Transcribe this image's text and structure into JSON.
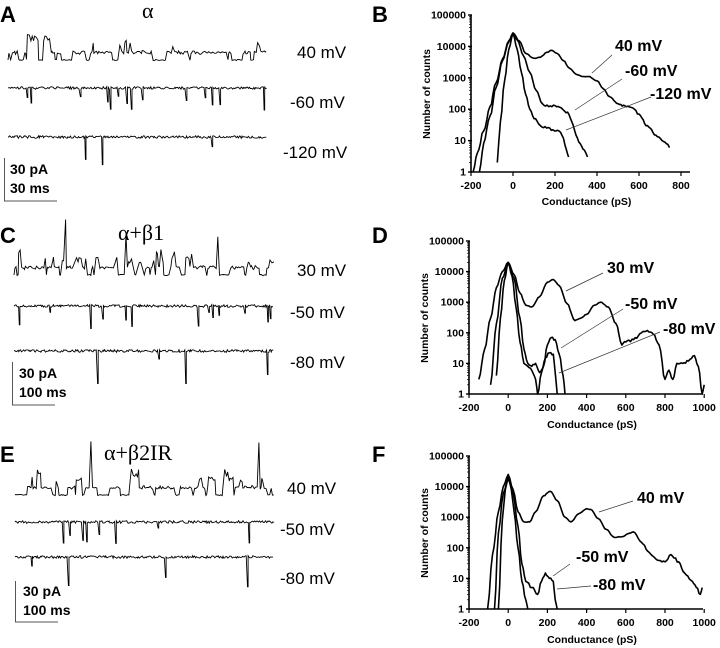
{
  "figure": {
    "panels": [
      {
        "id": "A",
        "letter": "A",
        "condition": "α",
        "traces": [
          {
            "voltage": "40 mV",
            "polarity": "up",
            "openings": "frequent"
          },
          {
            "voltage": "-60 mV",
            "polarity": "down",
            "openings": "sparse"
          },
          {
            "voltage": "-120 mV",
            "polarity": "down",
            "openings": "rare"
          }
        ],
        "scale_bar": {
          "current": "30 pA",
          "time": "30 ms"
        }
      },
      {
        "id": "C",
        "letter": "C",
        "condition": "α+β1",
        "traces": [
          {
            "voltage": "30 mV",
            "polarity": "up",
            "openings": "frequent"
          },
          {
            "voltage": "-50 mV",
            "polarity": "down",
            "openings": "sparse"
          },
          {
            "voltage": "-80 mV",
            "polarity": "down",
            "openings": "rare"
          }
        ],
        "scale_bar": {
          "current": "30 pA",
          "time": "100 ms"
        }
      },
      {
        "id": "E",
        "letter": "E",
        "condition": "α+β2IR",
        "traces": [
          {
            "voltage": "40 mV",
            "polarity": "up",
            "openings": "frequent"
          },
          {
            "voltage": "-50 mV",
            "polarity": "down",
            "openings": "sparse"
          },
          {
            "voltage": "-80 mV",
            "polarity": "down",
            "openings": "rare"
          }
        ],
        "scale_bar": {
          "current": "30 pA",
          "time": "100 ms"
        }
      }
    ]
  },
  "chart_data": [
    {
      "panel": "B",
      "type": "line",
      "xlabel": "Conductance (pS)",
      "ylabel": "Number of counts",
      "yscale": "log",
      "xlim": [
        -200,
        880
      ],
      "ylim": [
        1,
        100000
      ],
      "xticks": [
        "-200",
        "0",
        "200",
        "400",
        "600",
        "800"
      ],
      "xtick_values": [
        -200,
        0,
        200,
        400,
        600,
        800
      ],
      "yticks": [
        "1",
        "10",
        "100",
        "1000",
        "10000",
        "100000"
      ],
      "ytick_values": [
        1,
        10,
        100,
        1000,
        10000,
        100000
      ],
      "series": [
        {
          "name": "40 mV",
          "label": "40 mV",
          "x": [
            -190,
            -170,
            -140,
            -110,
            -80,
            -50,
            -20,
            0,
            30,
            60,
            100,
            130,
            160,
            185,
            210,
            240,
            270,
            300,
            330,
            360,
            400,
            430,
            460,
            500,
            540,
            570,
            600,
            640,
            680,
            710,
            730,
            745
          ],
          "y": [
            1,
            4,
            20,
            120,
            700,
            4000,
            15000,
            27000,
            15000,
            6000,
            4200,
            4500,
            6500,
            7500,
            6000,
            3500,
            2000,
            1300,
            1100,
            1100,
            800,
            450,
            250,
            150,
            120,
            110,
            70,
            30,
            15,
            10,
            8,
            6
          ]
        },
        {
          "name": "-60 mV",
          "label": "-60 mV",
          "x": [
            -160,
            -140,
            -110,
            -80,
            -50,
            -20,
            0,
            20,
            50,
            80,
            110,
            140,
            170,
            200,
            230,
            260,
            280,
            300,
            320,
            340,
            355
          ],
          "y": [
            1,
            8,
            60,
            500,
            3500,
            14000,
            26000,
            16000,
            5000,
            1500,
            400,
            150,
            120,
            130,
            110,
            80,
            40,
            15,
            8,
            5,
            3
          ]
        },
        {
          "name": "-120 mV",
          "label": "-120 mV",
          "x": [
            -75,
            -60,
            -40,
            -20,
            0,
            20,
            40,
            60,
            80,
            100,
            130,
            160,
            190,
            220,
            240,
            255,
            265
          ],
          "y": [
            2,
            40,
            800,
            8000,
            26000,
            8000,
            1500,
            300,
            100,
            50,
            30,
            25,
            22,
            20,
            12,
            5,
            3
          ]
        }
      ],
      "annotations": [
        "40 mV",
        "-60 mV",
        "-120 mV"
      ]
    },
    {
      "panel": "D",
      "type": "line",
      "xlabel": "Conductance (pS)",
      "ylabel": "Number of counts",
      "yscale": "log",
      "xlim": [
        -200,
        1000
      ],
      "ylim": [
        1,
        100000
      ],
      "xticks": [
        "-200",
        "0",
        "200",
        "400",
        "600",
        "800",
        "1000"
      ],
      "xtick_values": [
        -200,
        0,
        200,
        400,
        600,
        800,
        1000
      ],
      "yticks": [
        "1",
        "10",
        "100",
        "1000",
        "10000",
        "100000"
      ],
      "ytick_values": [
        1,
        10,
        100,
        1000,
        10000,
        100000
      ],
      "series": [
        {
          "name": "30 mV",
          "label": "30 mV",
          "x": [
            -150,
            -120,
            -90,
            -60,
            -30,
            0,
            30,
            60,
            90,
            120,
            160,
            200,
            230,
            260,
            300,
            340,
            370,
            400,
            440,
            470,
            510,
            550,
            580,
            600,
            640,
            680,
            710,
            740,
            770,
            800,
            820,
            840,
            860,
            890,
            920,
            950,
            970,
            990,
            1000
          ],
          "y": [
            3,
            30,
            300,
            3000,
            10000,
            20000,
            8000,
            2000,
            800,
            700,
            1500,
            4500,
            5500,
            3500,
            900,
            250,
            300,
            400,
            800,
            1000,
            700,
            200,
            40,
            50,
            60,
            100,
            120,
            90,
            40,
            3,
            6,
            3,
            10,
            10,
            12,
            18,
            8,
            1,
            2
          ]
        },
        {
          "name": "-50 mV",
          "label": "-50 mV",
          "x": [
            -90,
            -60,
            -30,
            0,
            30,
            60,
            80,
            100,
            120,
            140,
            160,
            180,
            200,
            220,
            240,
            260,
            280,
            290
          ],
          "y": [
            2,
            200,
            6000,
            20000,
            6000,
            300,
            30,
            10,
            8,
            10,
            5,
            8,
            40,
            70,
            60,
            20,
            4,
            1
          ]
        },
        {
          "name": "-80 mV",
          "label": "-80 mV",
          "x": [
            -60,
            -40,
            -20,
            0,
            20,
            40,
            60,
            80,
            100,
            120,
            140,
            150,
            170,
            190,
            210,
            230,
            240,
            250
          ],
          "y": [
            4,
            300,
            5000,
            20000,
            7000,
            700,
            50,
            10,
            8,
            6,
            3,
            1,
            5,
            15,
            22,
            20,
            5,
            1
          ]
        }
      ],
      "annotations": [
        "30 mV",
        "-50 mV",
        "-80 mV"
      ]
    },
    {
      "panel": "F",
      "type": "line",
      "xlabel": "Conductance (pS)",
      "ylabel": "Number of counts",
      "yscale": "log",
      "xlim": [
        -200,
        1000
      ],
      "ylim": [
        1,
        100000
      ],
      "xticks": [
        "-200",
        "0",
        "200",
        "400",
        "600",
        "800",
        "1000"
      ],
      "xtick_values": [
        -200,
        0,
        200,
        400,
        600,
        800,
        1000
      ],
      "yticks": [
        "1",
        "10",
        "100",
        "1000",
        "10000",
        "100000"
      ],
      "ytick_values": [
        1,
        10,
        100,
        1000,
        10000,
        100000
      ],
      "series": [
        {
          "name": "40 mV",
          "label": "40 mV",
          "x": [
            -105,
            -80,
            -50,
            -25,
            0,
            25,
            50,
            80,
            110,
            140,
            180,
            215,
            250,
            290,
            320,
            360,
            400,
            420,
            460,
            500,
            540,
            580,
            620,
            640,
            680,
            720,
            760,
            800,
            830,
            870,
            900,
            940,
            960,
            980,
            990
          ],
          "y": [
            1,
            60,
            1500,
            10000,
            25000,
            8000,
            1500,
            700,
            700,
            1500,
            5000,
            7000,
            3500,
            1000,
            700,
            1300,
            1900,
            1800,
            900,
            400,
            220,
            230,
            300,
            330,
            150,
            70,
            40,
            35,
            60,
            35,
            15,
            8,
            5,
            3,
            5
          ]
        },
        {
          "name": "-50 mV",
          "label": "-50 mV",
          "x": [
            -70,
            -50,
            -25,
            0,
            25,
            50,
            70,
            90,
            120,
            150,
            170,
            190,
            200,
            210,
            230,
            240,
            250
          ],
          "y": [
            1,
            300,
            6000,
            18000,
            6000,
            500,
            30,
            8,
            5,
            3,
            8,
            15,
            12,
            10,
            8,
            2,
            1
          ]
        },
        {
          "name": "-80 mV",
          "label": "-80 mV",
          "x": [
            -50,
            -30,
            -15,
            0,
            15,
            30,
            50,
            70,
            90,
            100
          ],
          "y": [
            1,
            800,
            8000,
            20000,
            9000,
            1500,
            100,
            8,
            2,
            1
          ]
        }
      ],
      "annotations": [
        "40 mV",
        "-50 mV",
        "-80 mV"
      ]
    }
  ]
}
